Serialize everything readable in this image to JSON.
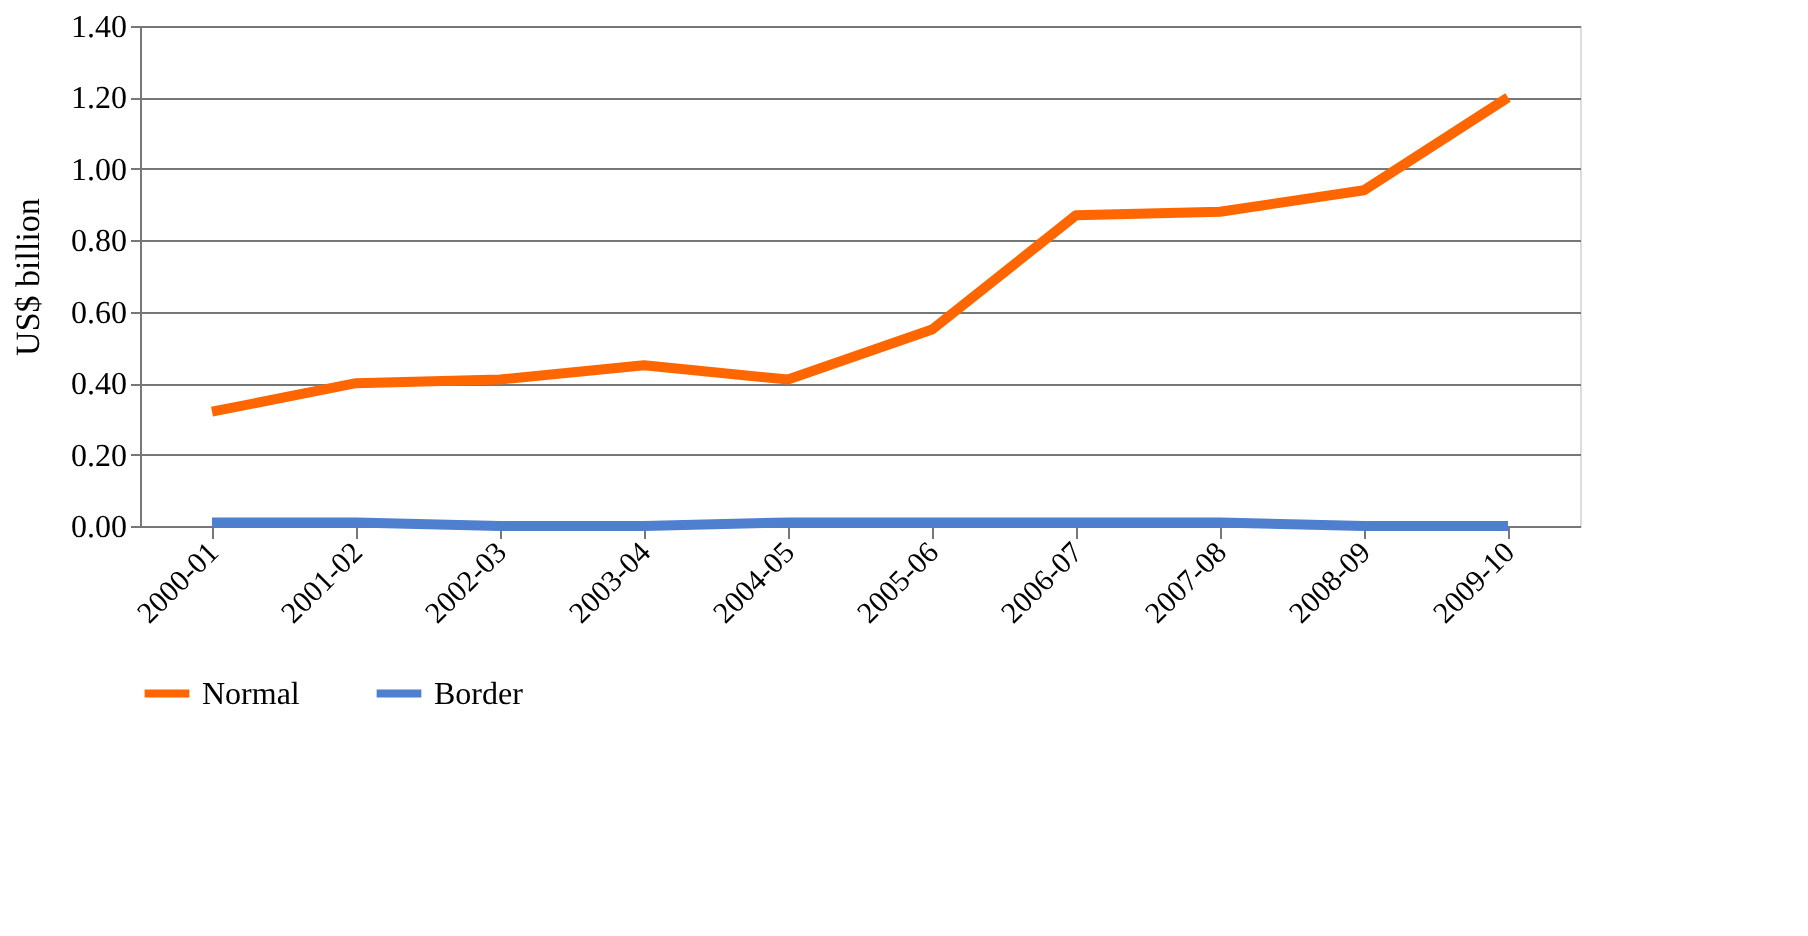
{
  "chart_data": {
    "type": "line",
    "ylabel": "US$ billion",
    "categories": [
      "2000-01",
      "2001-02",
      "2002-03",
      "2003-04",
      "2004-05",
      "2005-06",
      "2006-07",
      "2007-08",
      "2008-09",
      "2009-10"
    ],
    "series": [
      {
        "name": "Normal",
        "color": "#ff6600",
        "values": [
          0.32,
          0.4,
          0.41,
          0.45,
          0.41,
          0.55,
          0.87,
          0.88,
          0.94,
          1.2
        ]
      },
      {
        "name": "Border",
        "color": "#4f7fcf",
        "values": [
          0.01,
          0.01,
          0.0,
          0.0,
          0.01,
          0.01,
          0.01,
          0.01,
          0.0,
          0.0
        ]
      }
    ],
    "ylim": [
      0,
      1.4
    ],
    "yticks": [
      {
        "value": 0,
        "label": "0.00"
      },
      {
        "value": 0.2,
        "label": "0.20"
      },
      {
        "value": 0.4,
        "label": "0.40"
      },
      {
        "value": 0.6,
        "label": "0.60"
      },
      {
        "value": 0.8,
        "label": "0.80"
      },
      {
        "value": 1.0,
        "label": "1.00"
      },
      {
        "value": 1.2,
        "label": "1.20"
      },
      {
        "value": 1.4,
        "label": "1.40"
      }
    ],
    "grid": "y",
    "legend": "bottom",
    "marker": "none",
    "line_style": "solid"
  }
}
